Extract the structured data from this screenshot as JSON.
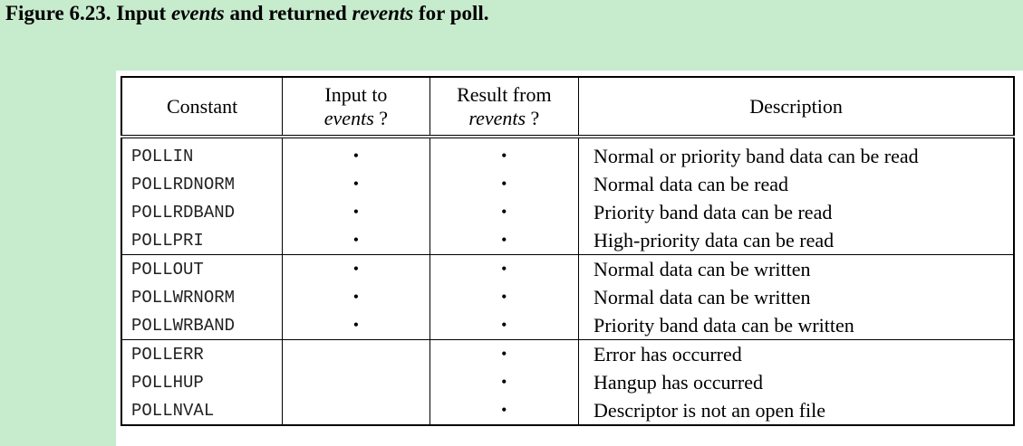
{
  "caption": {
    "prefix": "Figure 6.23. Input ",
    "word1": "events",
    "middle": " and returned ",
    "word2": "revents",
    "suffix": " for poll."
  },
  "table": {
    "headers": {
      "constant": "Constant",
      "input_line1": "Input to",
      "input_line2": "events",
      "input_q": " ?",
      "result_line1": "Result from",
      "result_line2": "revents",
      "result_q": " ?",
      "description": "Description"
    },
    "bullet": "•",
    "rows": [
      {
        "constant": "POLLIN",
        "input": "•",
        "result": "•",
        "description": "Normal or priority band data can be read"
      },
      {
        "constant": "POLLRDNORM",
        "input": "•",
        "result": "•",
        "description": "Normal data can be read"
      },
      {
        "constant": "POLLRDBAND",
        "input": "•",
        "result": "•",
        "description": "Priority band data can be read"
      },
      {
        "constant": "POLLPRI",
        "input": "•",
        "result": "•",
        "description": "High-priority data can be read"
      },
      {
        "constant": "POLLOUT",
        "input": "•",
        "result": "•",
        "description": "Normal data can be written"
      },
      {
        "constant": "POLLWRNORM",
        "input": "•",
        "result": "•",
        "description": "Normal data can be written"
      },
      {
        "constant": "POLLWRBAND",
        "input": "•",
        "result": "•",
        "description": "Priority band data can be written"
      },
      {
        "constant": "POLLERR",
        "input": "",
        "result": "•",
        "description": "Error has occurred"
      },
      {
        "constant": "POLLHUP",
        "input": "",
        "result": "•",
        "description": "Hangup has occurred"
      },
      {
        "constant": "POLLNVAL",
        "input": "",
        "result": "•",
        "description": "Descriptor is not an open file"
      }
    ]
  }
}
